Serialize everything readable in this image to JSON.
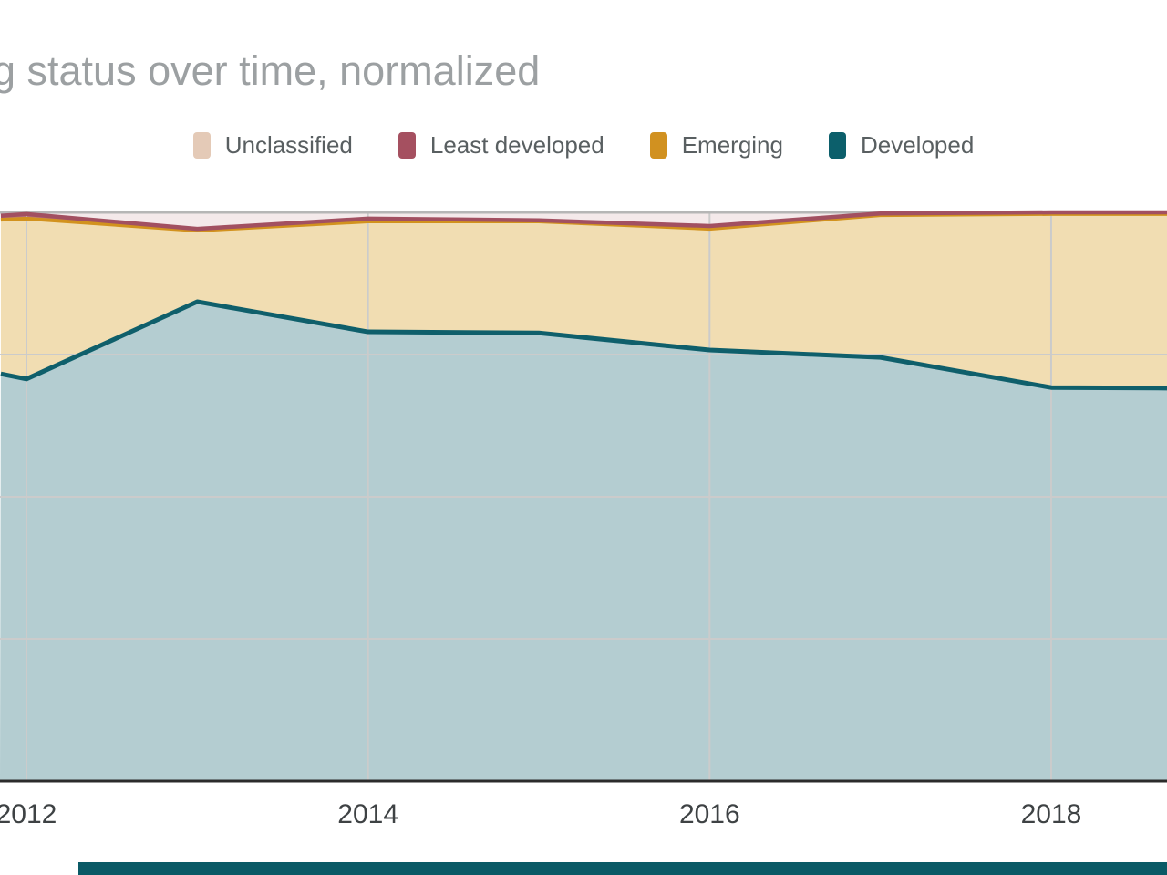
{
  "title": {
    "text": "g status over time, normalized"
  },
  "legend": {
    "items": [
      {
        "label": "Unclassified",
        "color": "#e4cab7"
      },
      {
        "label": "Least developed",
        "color": "#a55060"
      },
      {
        "label": "Emerging",
        "color": "#d19120"
      },
      {
        "label": "Developed",
        "color": "#0c5f6b"
      }
    ]
  },
  "chart_data": {
    "type": "area",
    "stacked": true,
    "normalized": true,
    "title": "g status over time, normalized",
    "x": [
      2011.85,
      2012,
      2013,
      2014,
      2015,
      2016,
      2017,
      2018,
      2018.68
    ],
    "x_ticks": [
      2012,
      2014,
      2016,
      2018
    ],
    "x_tick_labels": [
      "2012",
      "2014",
      "2016",
      "2018"
    ],
    "ylim": [
      0,
      100
    ],
    "y_gridlines_pct": [
      25,
      50,
      75,
      100
    ],
    "grid_on": true,
    "legend_position": "top",
    "series": [
      {
        "name": "Developed",
        "values": [
          71.6,
          70.7,
          84.3,
          79.0,
          78.8,
          75.8,
          74.5,
          69.2,
          69.1
        ],
        "fill": "#b4cdd1",
        "stroke": "#0f5f6b",
        "stroke_width": 5
      },
      {
        "name": "Emerging",
        "values": [
          27.1,
          28.2,
          12.5,
          19.4,
          19.6,
          21.3,
          25.0,
          30.5,
          30.6
        ],
        "fill": "#f1ddb2",
        "stroke": "#d2921e",
        "stroke_width": 4
      },
      {
        "name": "Least developed",
        "values": [
          0.7,
          0.8,
          0.3,
          0.5,
          0.2,
          0.5,
          0.3,
          0.3,
          0.3
        ],
        "fill": "#bb7b85",
        "stroke": "#a25061",
        "stroke_width": 4.5
      },
      {
        "name": "Unclassified",
        "values": [
          0.6,
          0.3,
          2.9,
          1.1,
          1.4,
          2.4,
          0.2,
          0.0,
          0.0
        ],
        "fill": "#f4e9ea",
        "stroke": "none",
        "stroke_width": 0
      }
    ],
    "colors": {
      "gridline": "#cbcbcb",
      "top_line": "#b6b6b6",
      "axis_line": "#2b2b2b",
      "tick_label": "#3e4244"
    }
  },
  "footer_bar": {
    "color": "#0a5a66"
  }
}
